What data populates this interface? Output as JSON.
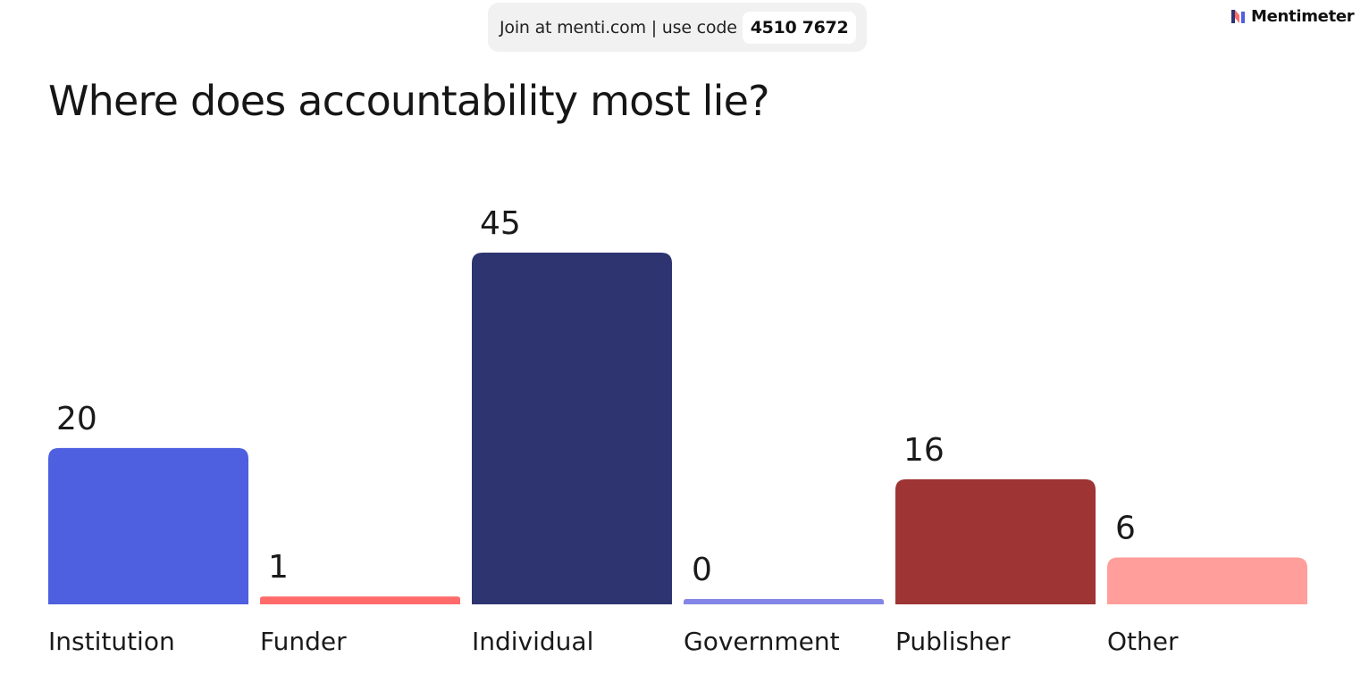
{
  "header": {
    "join_text": "Join at menti.com | use code",
    "code": "4510 7672",
    "brand_name": "Mentimeter",
    "brand_icon": "mentimeter-logo-icon"
  },
  "question": {
    "title": "Where does accountability most lie?"
  },
  "chart_data": {
    "type": "bar",
    "title": "Where does accountability most lie?",
    "categories": [
      "Institution",
      "Funder",
      "Individual",
      "Government",
      "Publisher",
      "Other"
    ],
    "values": [
      20,
      1,
      45,
      0,
      16,
      6
    ],
    "colors": [
      "#4e5fe0",
      "#ff6a6a",
      "#2d3470",
      "#8386e6",
      "#9e3434",
      "#ff9e9a"
    ],
    "xlabel": "",
    "ylabel": "",
    "ylim": [
      0,
      45
    ],
    "grid": false,
    "legend": "none"
  }
}
